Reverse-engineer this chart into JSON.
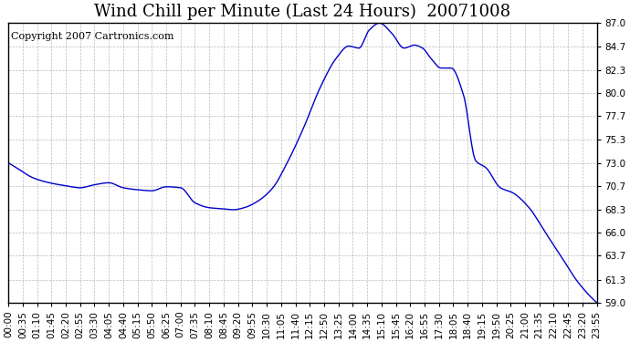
{
  "title": "Wind Chill per Minute (Last 24 Hours)  20071008",
  "copyright": "Copyright 2007 Cartronics.com",
  "line_color": "#0000cc",
  "background_color": "#ffffff",
  "grid_color": "#aaaaaa",
  "ylim": [
    59.0,
    87.0
  ],
  "yticks": [
    59.0,
    61.3,
    63.7,
    66.0,
    68.3,
    70.7,
    73.0,
    75.3,
    77.7,
    80.0,
    82.3,
    84.7,
    87.0
  ],
  "xtick_labels": [
    "00:00",
    "00:35",
    "01:10",
    "01:45",
    "02:20",
    "02:55",
    "03:30",
    "04:05",
    "04:40",
    "05:15",
    "05:50",
    "06:25",
    "07:00",
    "07:35",
    "08:10",
    "08:45",
    "09:20",
    "09:55",
    "10:30",
    "11:05",
    "11:40",
    "12:15",
    "12:50",
    "13:25",
    "14:00",
    "14:35",
    "15:10",
    "15:45",
    "16:20",
    "16:55",
    "17:30",
    "18:05",
    "18:40",
    "19:15",
    "19:50",
    "20:25",
    "21:00",
    "21:35",
    "22:10",
    "22:45",
    "23:20",
    "23:55"
  ],
  "ctrl_t": [
    0,
    20,
    60,
    100,
    140,
    175,
    210,
    245,
    280,
    315,
    350,
    385,
    420,
    455,
    490,
    520,
    550,
    575,
    610,
    645,
    680,
    720,
    760,
    800,
    830,
    855,
    880,
    905,
    935,
    965,
    990,
    1010,
    1030,
    1055,
    1080,
    1110,
    1140,
    1165,
    1200,
    1230,
    1270,
    1310,
    1350,
    1390,
    1435
  ],
  "ctrl_y": [
    73.0,
    72.5,
    71.5,
    71.0,
    70.7,
    70.5,
    70.8,
    71.0,
    70.5,
    70.3,
    70.2,
    70.6,
    70.5,
    69.0,
    68.5,
    68.4,
    68.3,
    68.5,
    69.2,
    70.5,
    73.0,
    76.5,
    80.5,
    83.5,
    84.7,
    84.5,
    86.3,
    87.0,
    86.0,
    84.5,
    84.8,
    84.5,
    83.5,
    82.5,
    82.5,
    79.8,
    73.2,
    72.5,
    70.5,
    70.0,
    68.5,
    66.0,
    63.5,
    61.0,
    59.0
  ],
  "title_fontsize": 13,
  "tick_fontsize": 7.5,
  "copyright_fontsize": 8
}
